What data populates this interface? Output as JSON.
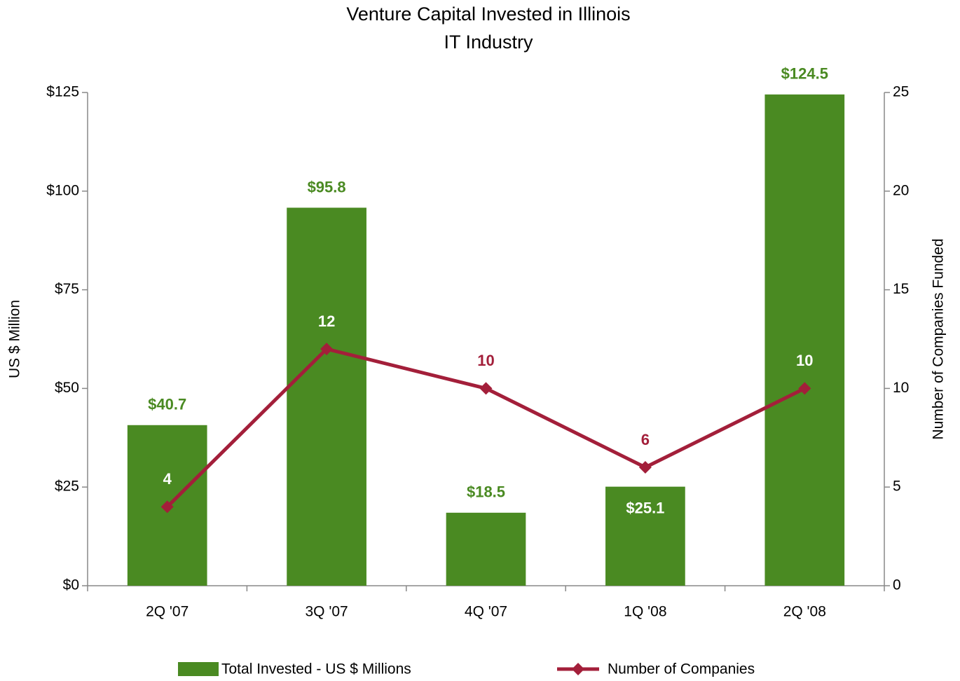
{
  "chart_data": {
    "type": "bar",
    "title": "Venture Capital Invested in Illinois",
    "subtitle": "IT Industry",
    "y_label": "US $ Million",
    "y2_label": "Number of Companies Funded",
    "categories": [
      "2Q '07",
      "3Q '07",
      "4Q '07",
      "1Q '08",
      "2Q '08"
    ],
    "series": [
      {
        "name": "Total Invested - US $ Millions",
        "type": "bar",
        "color": "#4a8a22",
        "values": [
          40.7,
          95.8,
          18.5,
          25.1,
          124.5
        ],
        "value_labels": [
          "$40.7",
          "$95.8",
          "$18.5",
          "$25.1",
          "$124.5"
        ]
      },
      {
        "name": "Number of Companies",
        "type": "line",
        "axis": "y2",
        "color": "#a31f3a",
        "values": [
          4,
          12,
          10,
          6,
          10
        ]
      }
    ],
    "ylim": [
      0,
      125
    ],
    "yticks": [
      {
        "value": 0,
        "label": "$0"
      },
      {
        "value": 25,
        "label": "$25"
      },
      {
        "value": 50,
        "label": "$50"
      },
      {
        "value": 75,
        "label": "$75"
      },
      {
        "value": 100,
        "label": "$100"
      },
      {
        "value": 125,
        "label": "$125"
      }
    ],
    "y2lim": [
      0,
      25
    ],
    "y2ticks": [
      0,
      5,
      10,
      15,
      20,
      25
    ],
    "legend": "bottom"
  }
}
